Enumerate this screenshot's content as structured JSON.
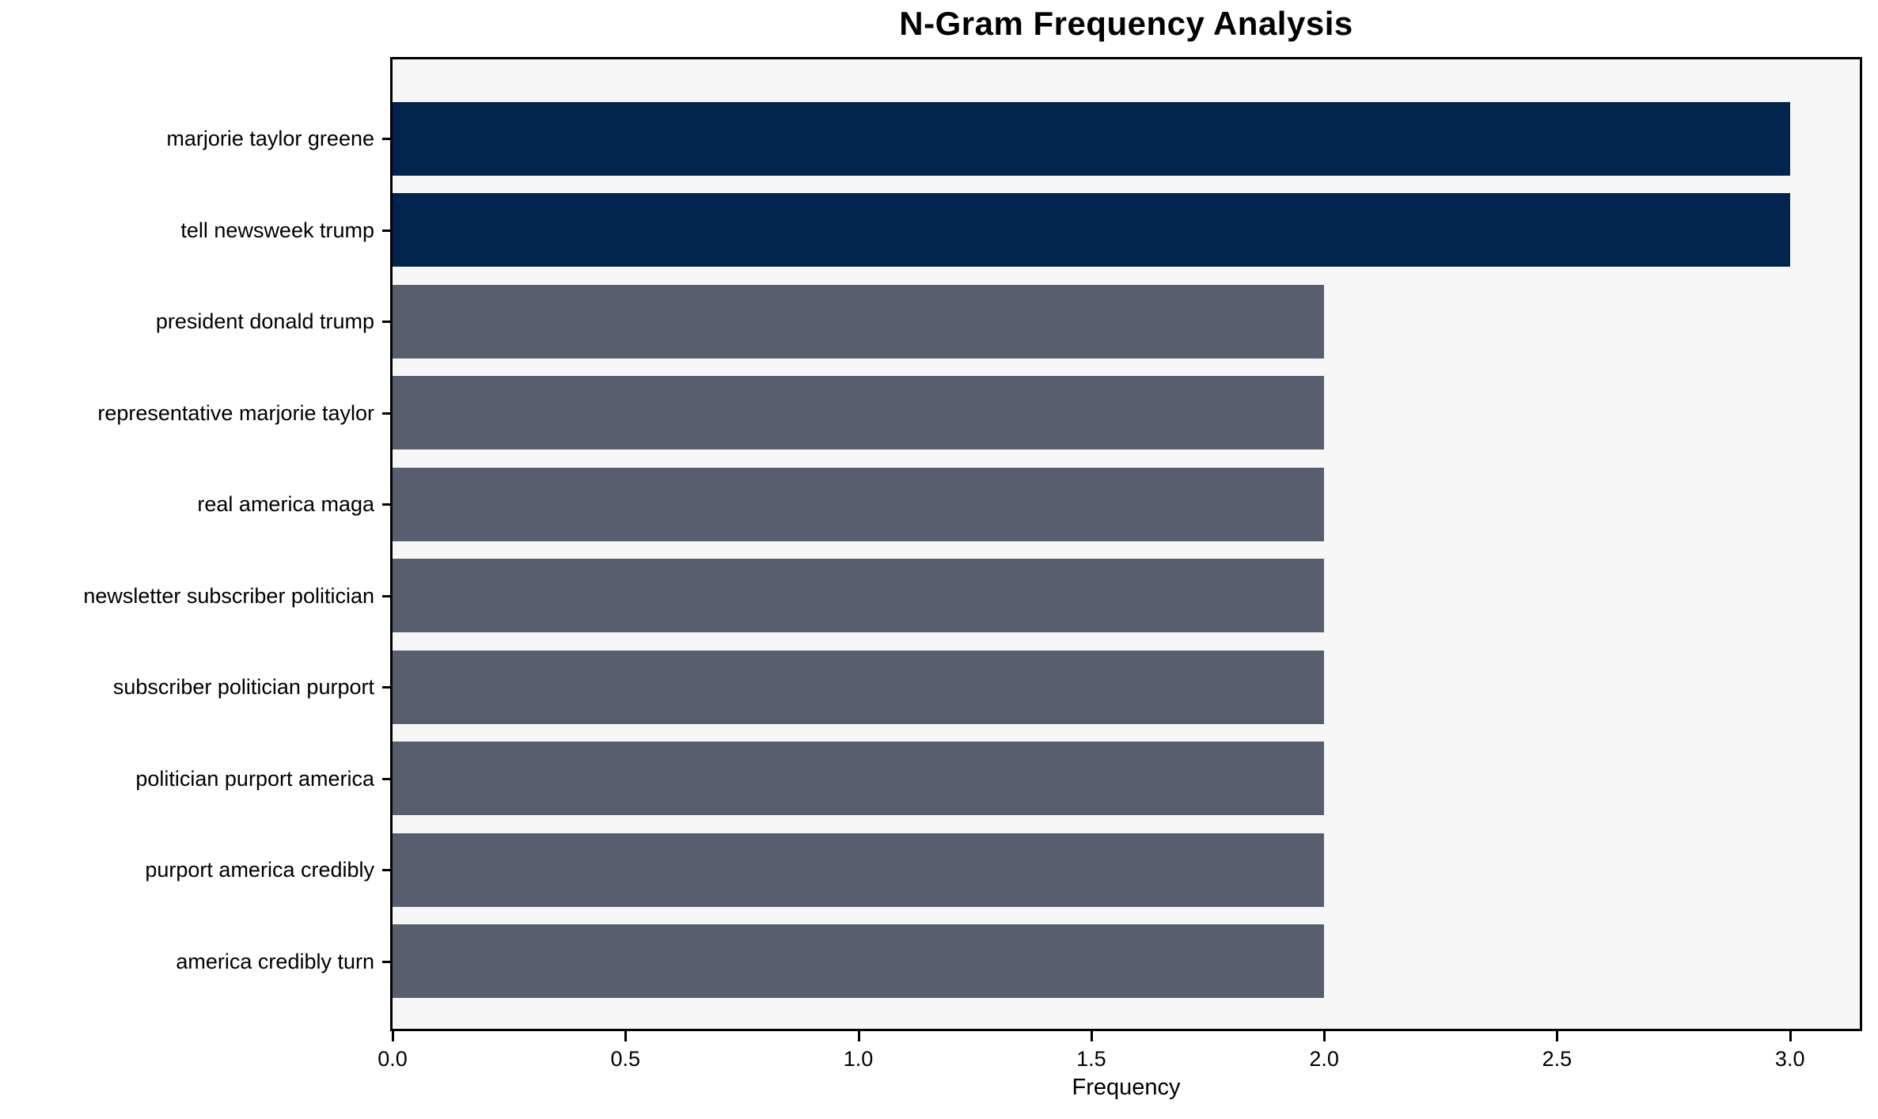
{
  "chart_data": {
    "type": "bar",
    "orientation": "horizontal",
    "title": "N-Gram Frequency Analysis",
    "xlabel": "Frequency",
    "ylabel": "",
    "categories": [
      "marjorie taylor greene",
      "tell newsweek trump",
      "president donald trump",
      "representative marjorie taylor",
      "real america maga",
      "newsletter subscriber politician",
      "subscriber politician purport",
      "politician purport america",
      "purport america credibly",
      "america credibly turn"
    ],
    "values": [
      3,
      3,
      2,
      2,
      2,
      2,
      2,
      2,
      2,
      2
    ],
    "xlim": [
      0,
      3.15
    ],
    "xticks": [
      0.0,
      0.5,
      1.0,
      1.5,
      2.0,
      2.5,
      3.0
    ],
    "xtick_labels": [
      "0.0",
      "0.5",
      "1.0",
      "1.5",
      "2.0",
      "2.5",
      "3.0"
    ],
    "grid": false,
    "legend": null,
    "colors": {
      "highlight_bar": "#01244f",
      "default_bar": "#575f6e",
      "plot_background": "#f7f7f7",
      "figure_background": "#ffffff",
      "spine": "#000000",
      "text": "#000000"
    },
    "bar_colors": [
      "#01244f",
      "#01244f",
      "#575f6e",
      "#575f6e",
      "#575f6e",
      "#575f6e",
      "#575f6e",
      "#575f6e",
      "#575f6e",
      "#575f6e"
    ]
  }
}
